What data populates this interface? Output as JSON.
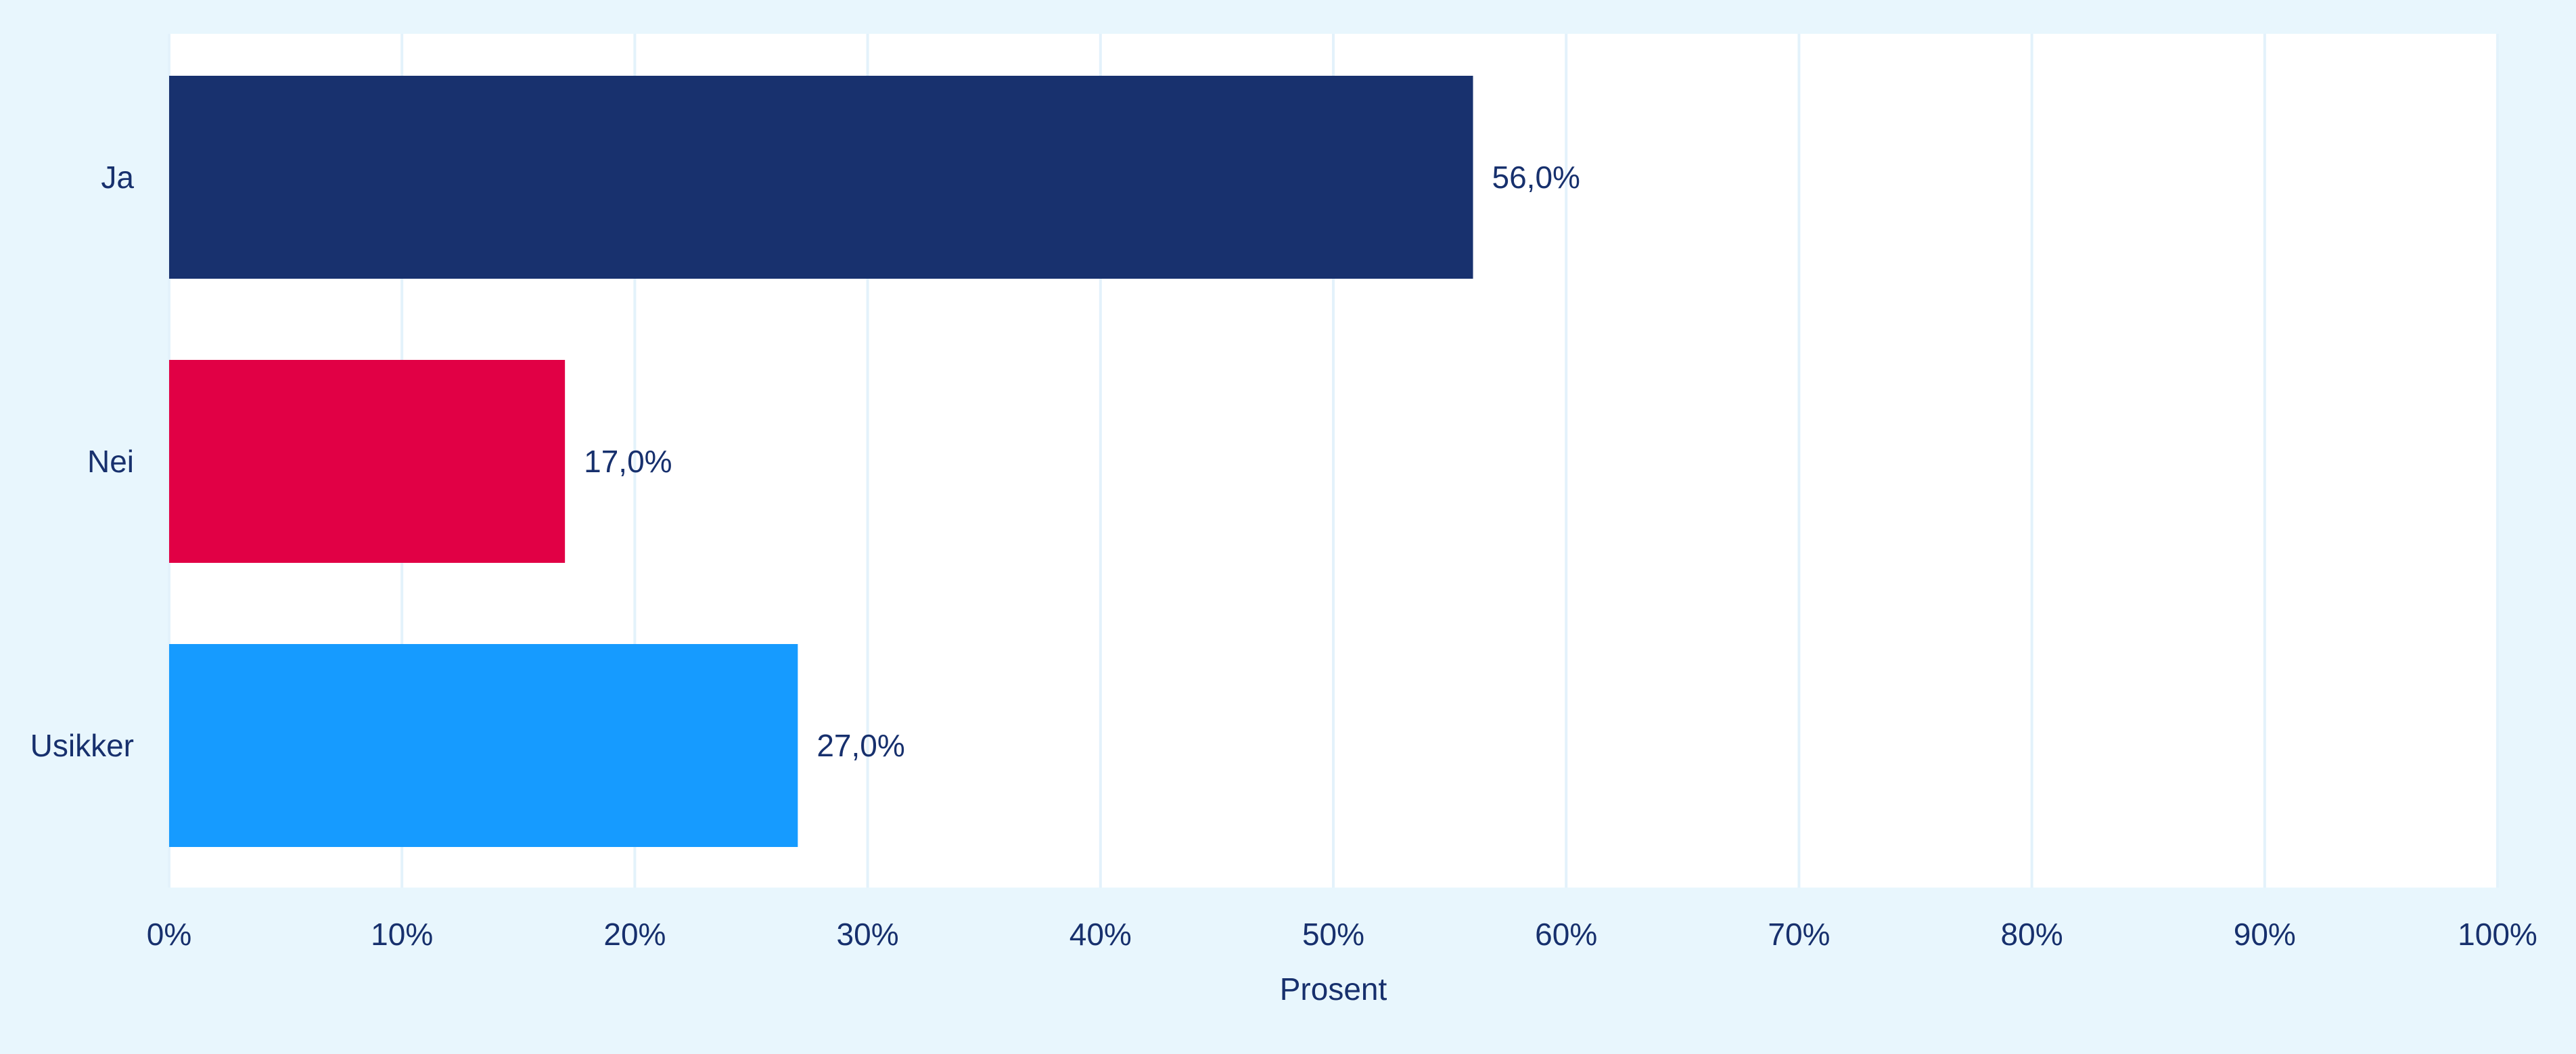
{
  "chart_data": {
    "type": "bar",
    "orientation": "horizontal",
    "categories": [
      "Ja",
      "Nei",
      "Usikker"
    ],
    "values": [
      56.0,
      17.0,
      27.0
    ],
    "value_labels": [
      "56,0%",
      "17,0%",
      "27,0%"
    ],
    "colors": [
      "#18316e",
      "#e10045",
      "#169bff"
    ],
    "xlabel": "Prosent",
    "ylabel": "",
    "xlim": [
      0,
      100
    ],
    "x_ticks": [
      "0%",
      "10%",
      "20%",
      "30%",
      "40%",
      "50%",
      "60%",
      "70%",
      "80%",
      "90%",
      "100%"
    ],
    "grid": "vertical",
    "legend": "none"
  },
  "colors": {
    "background": "#e8f6fd",
    "plot_background": "#ffffff",
    "gridline": "#e3f2fb",
    "text": "#17306d"
  }
}
